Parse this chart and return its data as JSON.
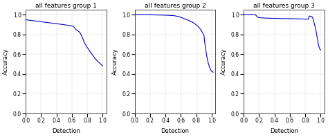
{
  "titles": [
    "all features group 1",
    "all features group 2",
    "all features group 3"
  ],
  "xlabel": "Detection",
  "ylabel": "Accuracy",
  "line_color": "#0000cc",
  "line_width": 0.8,
  "ylim": [
    0.0,
    1.05
  ],
  "xlim": [
    0.0,
    1.05
  ],
  "group1_x": [
    0.0,
    0.01,
    0.02,
    0.04,
    0.06,
    0.08,
    0.1,
    0.12,
    0.15,
    0.18,
    0.2,
    0.23,
    0.25,
    0.28,
    0.3,
    0.33,
    0.35,
    0.38,
    0.4,
    0.43,
    0.45,
    0.48,
    0.5,
    0.52,
    0.55,
    0.58,
    0.6,
    0.62,
    0.64,
    0.66,
    0.68,
    0.7,
    0.71,
    0.72,
    0.73,
    0.74,
    0.75,
    0.76,
    0.78,
    0.8,
    0.82,
    0.84,
    0.86,
    0.88,
    0.9,
    0.92,
    0.94,
    0.96,
    0.98,
    1.0
  ],
  "group1_y": [
    0.95,
    0.948,
    0.946,
    0.944,
    0.942,
    0.94,
    0.938,
    0.936,
    0.933,
    0.93,
    0.928,
    0.925,
    0.923,
    0.92,
    0.918,
    0.915,
    0.912,
    0.91,
    0.908,
    0.905,
    0.903,
    0.9,
    0.898,
    0.895,
    0.892,
    0.888,
    0.885,
    0.882,
    0.86,
    0.845,
    0.835,
    0.822,
    0.81,
    0.795,
    0.78,
    0.762,
    0.742,
    0.72,
    0.695,
    0.668,
    0.645,
    0.622,
    0.6,
    0.578,
    0.558,
    0.54,
    0.524,
    0.51,
    0.496,
    0.482
  ],
  "group2_x": [
    0.0,
    0.01,
    0.02,
    0.04,
    0.06,
    0.08,
    0.1,
    0.15,
    0.2,
    0.25,
    0.3,
    0.35,
    0.4,
    0.45,
    0.5,
    0.52,
    0.54,
    0.56,
    0.58,
    0.6,
    0.62,
    0.64,
    0.66,
    0.68,
    0.7,
    0.72,
    0.74,
    0.76,
    0.78,
    0.8,
    0.82,
    0.84,
    0.86,
    0.88,
    0.9,
    0.91,
    0.92,
    0.93,
    0.94,
    0.95,
    0.96,
    0.97,
    0.98,
    0.99,
    1.0,
    1.01,
    1.02
  ],
  "group2_y": [
    1.0,
    1.0,
    1.0,
    1.0,
    1.0,
    1.0,
    1.0,
    0.999,
    0.998,
    0.997,
    0.996,
    0.995,
    0.994,
    0.992,
    0.99,
    0.988,
    0.985,
    0.982,
    0.978,
    0.972,
    0.966,
    0.96,
    0.954,
    0.948,
    0.942,
    0.935,
    0.927,
    0.918,
    0.908,
    0.896,
    0.882,
    0.865,
    0.845,
    0.82,
    0.79,
    0.718,
    0.66,
    0.61,
    0.565,
    0.528,
    0.498,
    0.472,
    0.452,
    0.438,
    0.428,
    0.422,
    0.418
  ],
  "group3_x": [
    0.0,
    0.01,
    0.05,
    0.1,
    0.15,
    0.18,
    0.2,
    0.22,
    0.25,
    0.3,
    0.35,
    0.4,
    0.45,
    0.5,
    0.55,
    0.6,
    0.65,
    0.7,
    0.75,
    0.8,
    0.82,
    0.84,
    0.85,
    0.86,
    0.87,
    0.88,
    0.89,
    0.9,
    0.91,
    0.92,
    0.93,
    0.94,
    0.95,
    0.96,
    0.97,
    0.98,
    0.99,
    1.0
  ],
  "group3_y": [
    1.0,
    1.0,
    1.0,
    1.0,
    1.0,
    0.975,
    0.97,
    0.968,
    0.966,
    0.964,
    0.963,
    0.962,
    0.961,
    0.96,
    0.959,
    0.959,
    0.958,
    0.957,
    0.956,
    0.955,
    0.954,
    0.953,
    0.985,
    0.984,
    0.983,
    0.982,
    0.975,
    0.96,
    0.93,
    0.9,
    0.87,
    0.835,
    0.79,
    0.745,
    0.7,
    0.668,
    0.651,
    0.64
  ],
  "figsize": [
    4.74,
    1.98
  ],
  "dpi": 100
}
